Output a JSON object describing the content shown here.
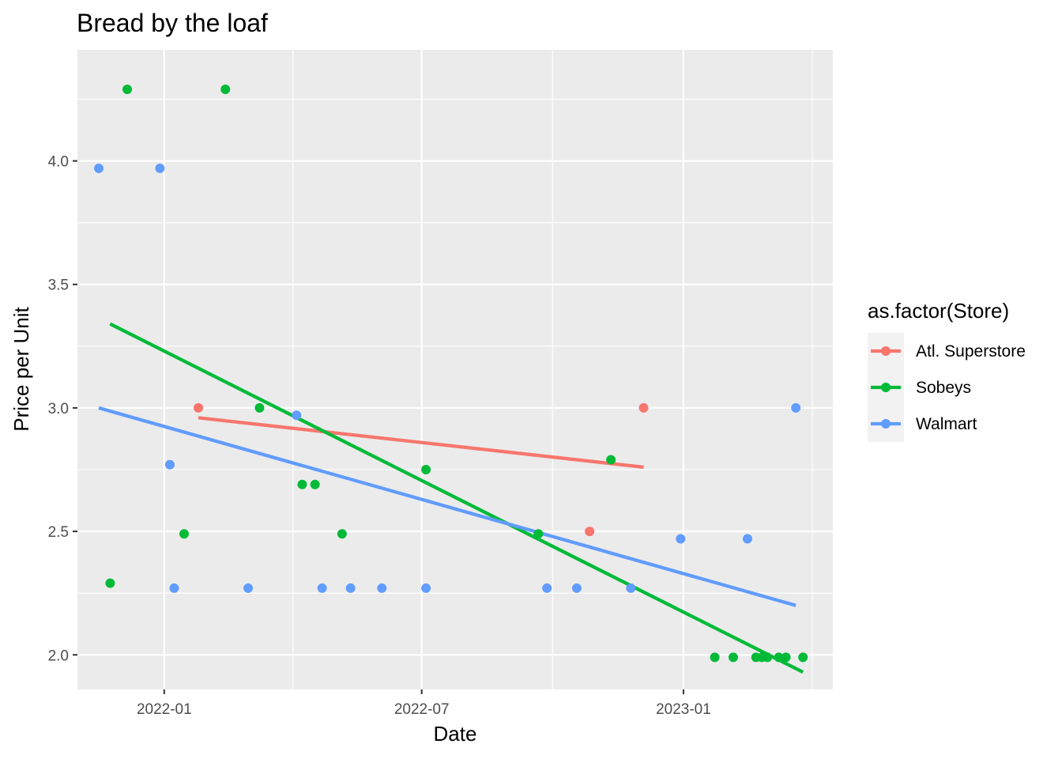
{
  "chart_data": {
    "type": "scatter",
    "title": "Bread by the loaf",
    "xlabel": "Date",
    "ylabel": "Price per Unit",
    "x_axis_type": "date",
    "xlim": [
      "2021-11-01",
      "2023-04-16"
    ],
    "ylim": [
      1.86,
      4.45
    ],
    "x_ticks": [
      "2022-01-01",
      "2022-07-01",
      "2023-01-01"
    ],
    "x_tick_labels": [
      "2022-01",
      "2022-07",
      "2023-01"
    ],
    "y_ticks": [
      2.0,
      2.5,
      3.0,
      3.5,
      4.0
    ],
    "y_tick_labels": [
      "2.0",
      "2.5",
      "3.0",
      "3.5",
      "4.0"
    ],
    "grid": true,
    "legend": {
      "title": "as.factor(Store)",
      "placement": "right"
    },
    "trendlines": "linear fit per series",
    "series": [
      {
        "name": "Atl. Superstore",
        "color": "#F8766D",
        "points": [
          {
            "x": "2022-01-25",
            "y": 3.0
          },
          {
            "x": "2022-10-27",
            "y": 2.5
          },
          {
            "x": "2022-12-04",
            "y": 3.0
          }
        ],
        "fit": [
          {
            "x": "2022-01-25",
            "y": 2.96
          },
          {
            "x": "2022-12-04",
            "y": 2.76
          }
        ]
      },
      {
        "name": "Sobeys",
        "color": "#00BA38",
        "points": [
          {
            "x": "2021-11-24",
            "y": 2.29
          },
          {
            "x": "2021-12-06",
            "y": 4.29
          },
          {
            "x": "2022-01-15",
            "y": 2.49
          },
          {
            "x": "2022-02-13",
            "y": 4.29
          },
          {
            "x": "2022-03-09",
            "y": 3.0
          },
          {
            "x": "2022-04-08",
            "y": 2.69
          },
          {
            "x": "2022-04-17",
            "y": 2.69
          },
          {
            "x": "2022-05-06",
            "y": 2.49
          },
          {
            "x": "2022-07-04",
            "y": 2.75
          },
          {
            "x": "2022-09-21",
            "y": 2.49
          },
          {
            "x": "2022-11-11",
            "y": 2.79
          },
          {
            "x": "2023-01-23",
            "y": 1.99
          },
          {
            "x": "2023-02-05",
            "y": 1.99
          },
          {
            "x": "2023-02-21",
            "y": 1.99
          },
          {
            "x": "2023-02-25",
            "y": 1.99
          },
          {
            "x": "2023-03-01",
            "y": 1.99
          },
          {
            "x": "2023-03-09",
            "y": 1.99
          },
          {
            "x": "2023-03-14",
            "y": 1.99
          },
          {
            "x": "2023-03-26",
            "y": 1.99
          }
        ],
        "fit": [
          {
            "x": "2021-11-24",
            "y": 3.34
          },
          {
            "x": "2023-03-26",
            "y": 1.93
          }
        ]
      },
      {
        "name": "Walmart",
        "color": "#619CFF",
        "points": [
          {
            "x": "2021-11-16",
            "y": 3.97
          },
          {
            "x": "2021-12-29",
            "y": 3.97
          },
          {
            "x": "2022-01-05",
            "y": 2.77
          },
          {
            "x": "2022-01-08",
            "y": 2.27
          },
          {
            "x": "2022-03-01",
            "y": 2.27
          },
          {
            "x": "2022-04-04",
            "y": 2.97
          },
          {
            "x": "2022-04-22",
            "y": 2.27
          },
          {
            "x": "2022-05-12",
            "y": 2.27
          },
          {
            "x": "2022-06-03",
            "y": 2.27
          },
          {
            "x": "2022-07-04",
            "y": 2.27
          },
          {
            "x": "2022-09-27",
            "y": 2.27
          },
          {
            "x": "2022-10-18",
            "y": 2.27
          },
          {
            "x": "2022-11-25",
            "y": 2.27
          },
          {
            "x": "2022-12-30",
            "y": 2.47
          },
          {
            "x": "2023-02-15",
            "y": 2.47
          },
          {
            "x": "2023-03-21",
            "y": 3.0
          }
        ],
        "fit": [
          {
            "x": "2021-11-16",
            "y": 3.0
          },
          {
            "x": "2023-03-21",
            "y": 2.2
          }
        ]
      }
    ]
  }
}
